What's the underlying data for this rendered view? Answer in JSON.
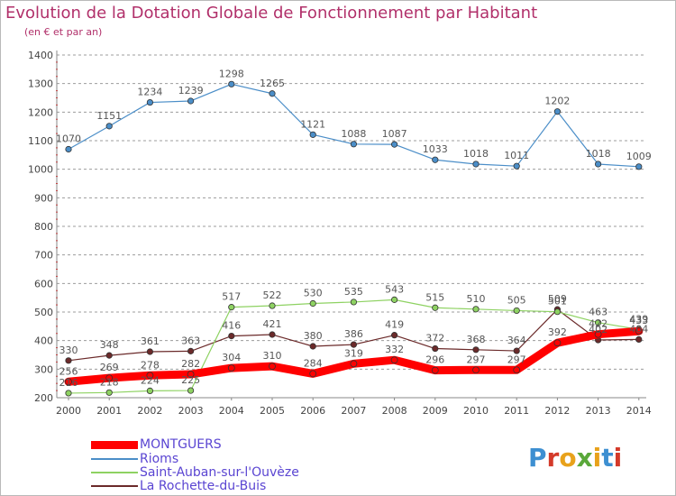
{
  "title": "Evolution de la Dotation Globale de Fonctionnement par Habitant",
  "subtitle": "(en € et par an)",
  "logo_text": "Proxiti",
  "colors": {
    "title": "#b1306a",
    "legend_text": "#5a45d2",
    "gridline": "#9c9c9c",
    "axis_text": "#444444",
    "value_label": "#555555"
  },
  "legend": [
    {
      "name": "MONTGUERS",
      "color": "#ff0000"
    },
    {
      "name": "Rioms",
      "color": "#4b8ec8"
    },
    {
      "name": "Saint-Auban-sur-l'Ouvèze",
      "color": "#8ed262"
    },
    {
      "name": "La Rochette-du-Buis",
      "color": "#6b2a2a"
    }
  ],
  "chart_data": {
    "type": "line",
    "title": "Evolution de la Dotation Globale de Fonctionnement par Habitant",
    "subtitle": "(en € et par an)",
    "xlabel": "",
    "ylabel": "",
    "x": [
      "2000",
      "2001",
      "2002",
      "2003",
      "2004",
      "2005",
      "2006",
      "2007",
      "2008",
      "2009",
      "2010",
      "2011",
      "2012",
      "2013",
      "2014"
    ],
    "ylim": [
      200,
      1400
    ],
    "yticks": [
      200,
      300,
      400,
      500,
      600,
      700,
      800,
      900,
      1000,
      1100,
      1200,
      1300,
      1400
    ],
    "grid": true,
    "legend_position": "bottom-left",
    "series": [
      {
        "name": "MONTGUERS",
        "color": "#ff0000",
        "values": [
          256,
          269,
          278,
          282,
          304,
          310,
          284,
          319,
          332,
          296,
          297,
          297,
          392,
          422,
          433
        ]
      },
      {
        "name": "Rioms",
        "color": "#4b8ec8",
        "values": [
          1070,
          1151,
          1234,
          1239,
          1298,
          1265,
          1121,
          1088,
          1087,
          1033,
          1018,
          1011,
          1202,
          1018,
          1009
        ]
      },
      {
        "name": "Saint-Auban-sur-l'Ouvèze",
        "color": "#8ed262",
        "values": [
          216,
          218,
          224,
          225,
          517,
          522,
          530,
          535,
          543,
          515,
          510,
          505,
          501,
          463,
          439
        ]
      },
      {
        "name": "La Rochette-du-Buis",
        "color": "#6b2a2a",
        "values": [
          330,
          348,
          361,
          363,
          416,
          421,
          380,
          386,
          419,
          372,
          368,
          364,
          509,
          402,
          404
        ]
      }
    ]
  }
}
